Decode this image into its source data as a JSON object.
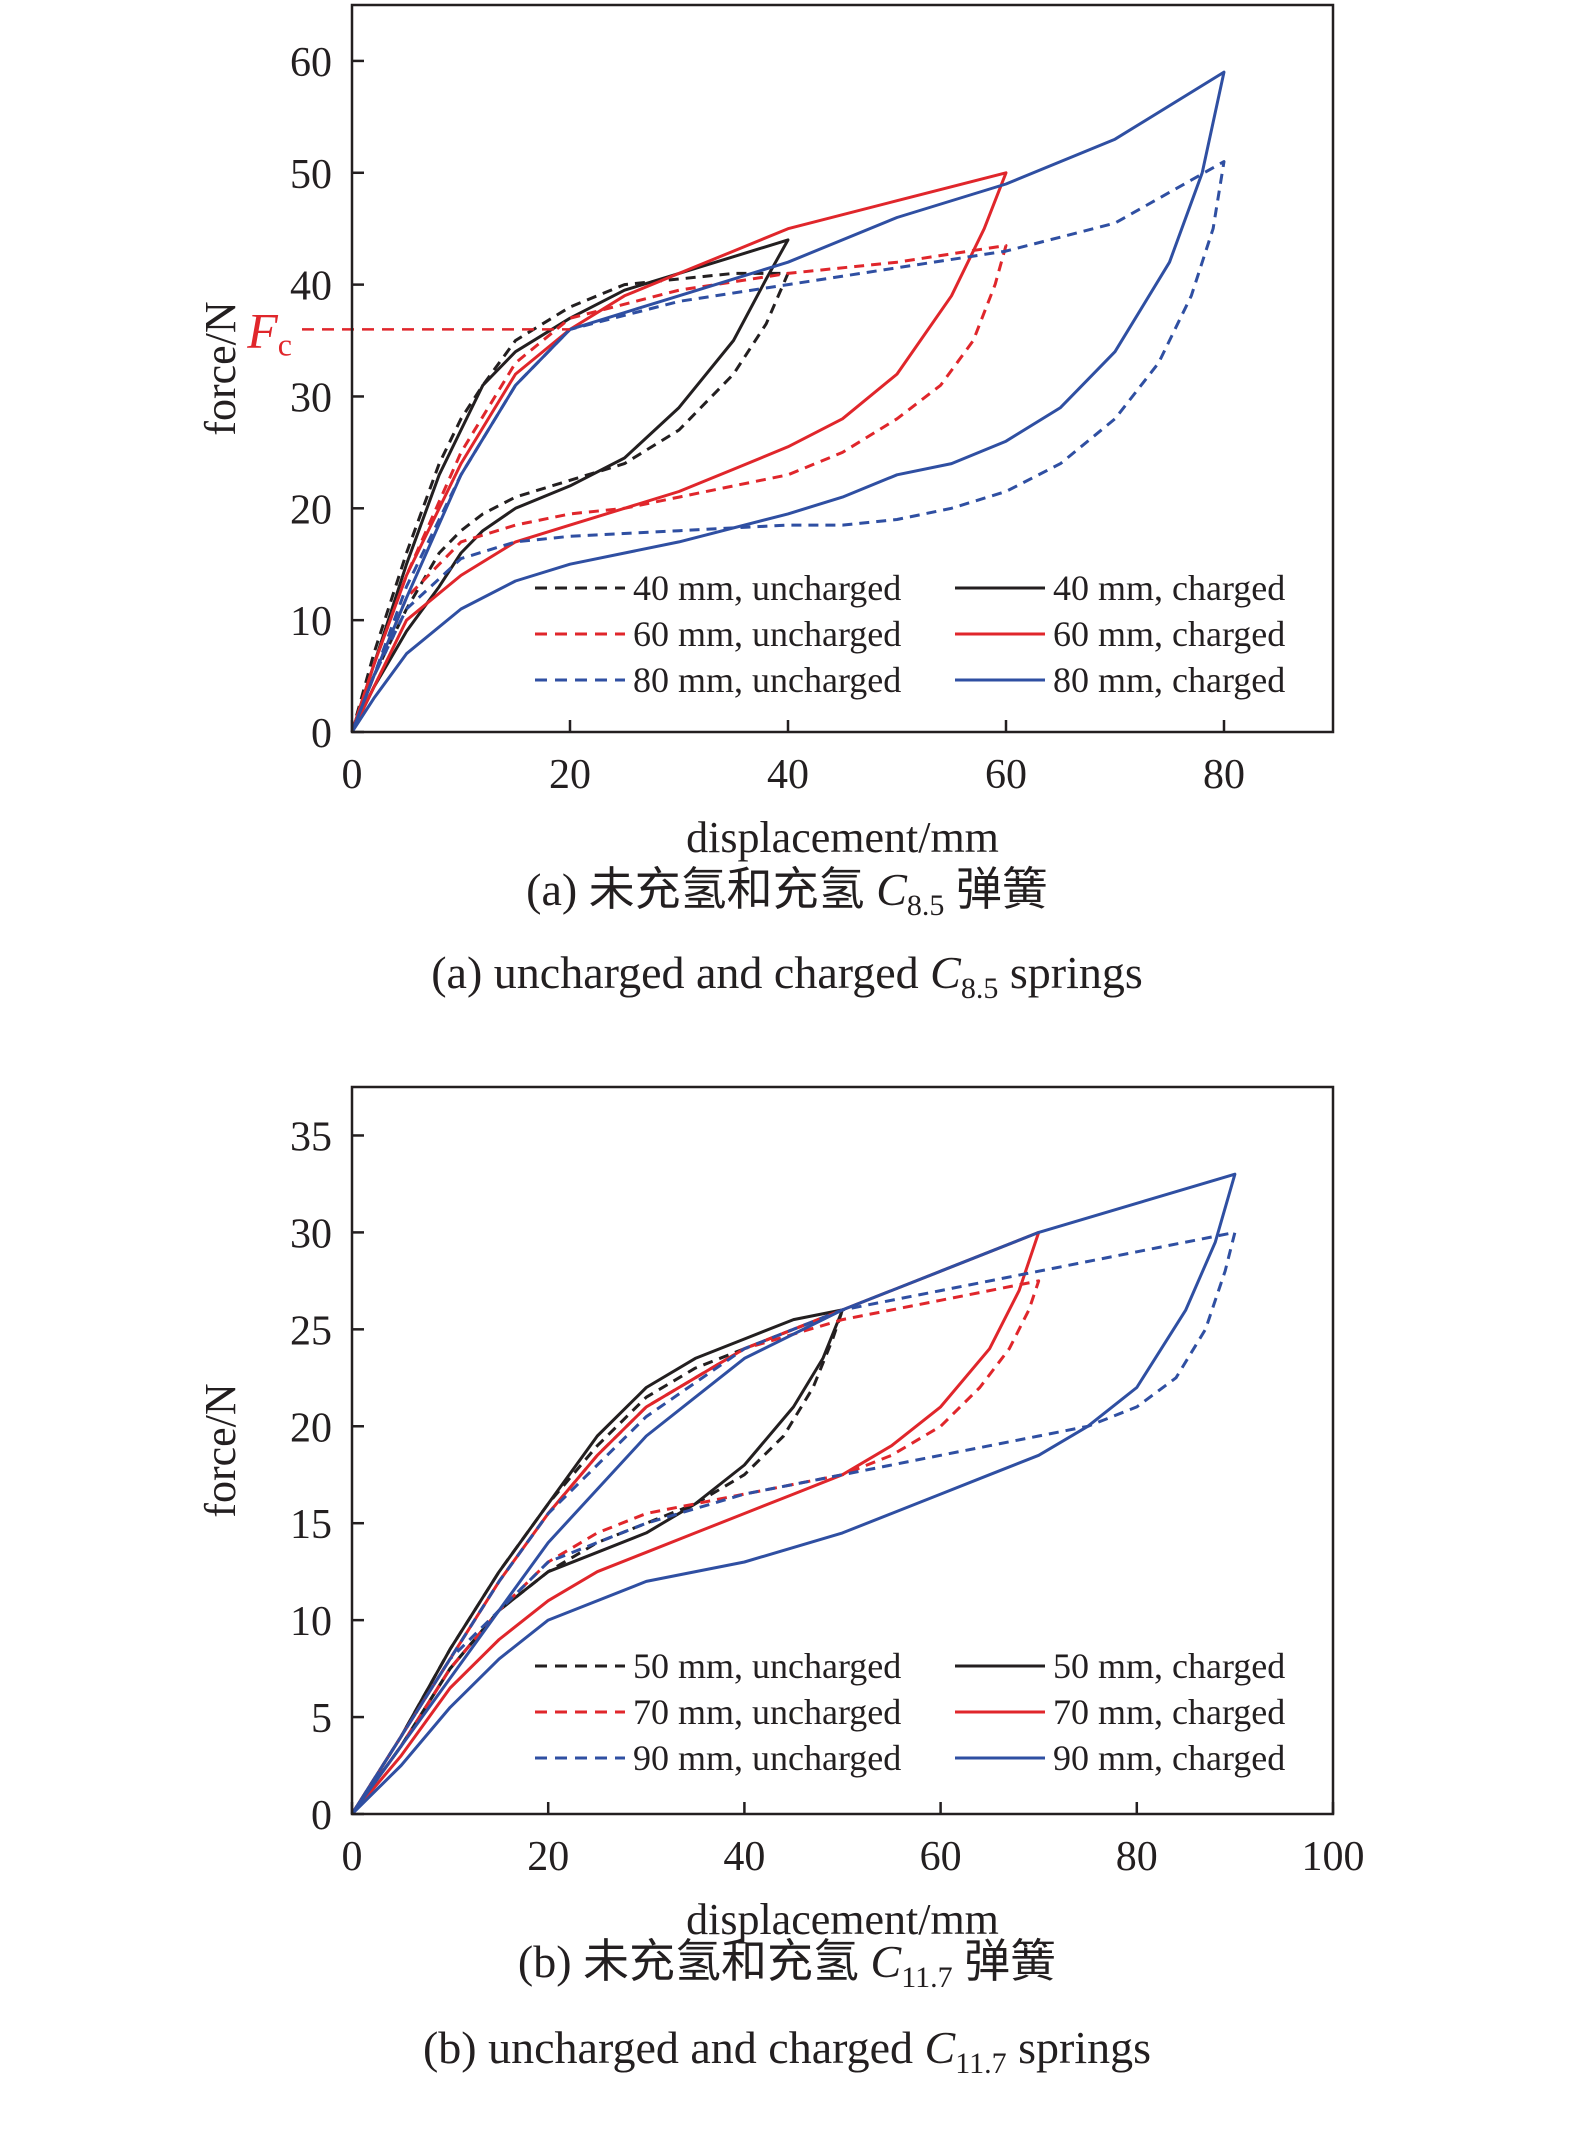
{
  "colors": {
    "uncharged_short": "#231f20",
    "mid": "#e0262b",
    "long": "#2f4fa2",
    "axis": "#231f20",
    "fc": "#e0262b"
  },
  "chart_data": [
    {
      "type": "line",
      "xlabel": "displacement/mm",
      "ylabel": "force/N",
      "xlim": [
        0,
        90
      ],
      "ylim": [
        0,
        65
      ],
      "xticks": [
        0,
        20,
        40,
        60,
        80
      ],
      "yticks": [
        0,
        10,
        20,
        30,
        40,
        50,
        60
      ],
      "annotation": {
        "label": "F",
        "sub": "c",
        "y": 36
      },
      "caption_cn": {
        "pre": "(a) 未充氢和充氢 ",
        "sym": "C",
        "sub": "8.5",
        "post": " 弹簧"
      },
      "caption_en": {
        "pre": "(a) uncharged and charged ",
        "sym": "C",
        "sub": "8.5",
        "post": " springs"
      },
      "legend_placement": "bottom-right",
      "series": [
        {
          "name": "40 mm, uncharged",
          "style": "dashed",
          "color": "#231f20",
          "x": [
            0,
            2,
            5,
            8,
            10,
            12,
            15,
            20,
            25,
            30,
            35,
            40,
            38,
            35,
            30,
            25,
            20,
            15,
            12,
            10,
            8,
            5,
            2,
            0
          ],
          "y": [
            0,
            7,
            16,
            24,
            28,
            31,
            35,
            38,
            40,
            40.5,
            41,
            41,
            36.5,
            32,
            27,
            24,
            22.5,
            21,
            19.5,
            18,
            16,
            11,
            5,
            0
          ]
        },
        {
          "name": "40 mm, charged",
          "style": "solid",
          "color": "#231f20",
          "x": [
            0,
            2,
            5,
            8,
            10,
            12,
            15,
            20,
            25,
            30,
            35,
            40,
            38,
            35,
            30,
            25,
            20,
            15,
            12,
            10,
            8,
            5,
            2,
            0
          ],
          "y": [
            0,
            6,
            15,
            23,
            27,
            31,
            34,
            37,
            39.5,
            41,
            42.5,
            44,
            40.5,
            35,
            29,
            24.5,
            22,
            20,
            18,
            16,
            13,
            9,
            4,
            0
          ]
        },
        {
          "name": "60 mm, uncharged",
          "style": "dashed",
          "color": "#e0262b",
          "x": [
            0,
            2,
            5,
            10,
            15,
            20,
            30,
            40,
            50,
            60,
            59,
            57,
            54,
            50,
            45,
            40,
            35,
            30,
            25,
            20,
            15,
            10,
            5,
            2,
            0
          ],
          "y": [
            0,
            6,
            14,
            25,
            33,
            37,
            39.5,
            41,
            42,
            43.5,
            40,
            35,
            31,
            28,
            25,
            23,
            22,
            21,
            20,
            19.5,
            18.5,
            17,
            12,
            5,
            0
          ]
        },
        {
          "name": "60 mm, charged",
          "style": "solid",
          "color": "#e0262b",
          "x": [
            0,
            2,
            5,
            10,
            15,
            20,
            25,
            30,
            35,
            40,
            50,
            60,
            58,
            55,
            50,
            45,
            40,
            35,
            30,
            25,
            20,
            15,
            10,
            5,
            2,
            0
          ],
          "y": [
            0,
            6,
            14,
            24,
            32,
            36,
            39,
            41,
            43,
            45,
            47.5,
            50,
            45,
            39,
            32,
            28,
            25.5,
            23.5,
            21.5,
            20,
            18.5,
            17,
            14,
            10,
            4,
            0
          ]
        },
        {
          "name": "80 mm, uncharged",
          "style": "dashed",
          "color": "#2f4fa2",
          "x": [
            0,
            2,
            5,
            10,
            15,
            20,
            30,
            40,
            50,
            60,
            70,
            80,
            79,
            77,
            74,
            70,
            65,
            60,
            55,
            50,
            45,
            40,
            30,
            20,
            15,
            10,
            5,
            2,
            0
          ],
          "y": [
            0,
            5,
            13,
            23,
            31,
            36,
            38.5,
            40,
            41.5,
            43,
            45.5,
            51,
            45,
            39,
            33,
            28,
            24,
            21.5,
            20,
            19,
            18.5,
            18.5,
            18,
            17.5,
            17,
            15.5,
            11,
            5,
            0
          ]
        },
        {
          "name": "80 mm, charged",
          "style": "solid",
          "color": "#2f4fa2",
          "x": [
            0,
            2,
            5,
            10,
            15,
            20,
            30,
            40,
            50,
            60,
            70,
            80,
            78,
            75,
            70,
            65,
            60,
            55,
            50,
            45,
            40,
            30,
            20,
            15,
            10,
            5,
            2,
            0
          ],
          "y": [
            0,
            5,
            12,
            23,
            31,
            36,
            39,
            42,
            46,
            49,
            53,
            59,
            50,
            42,
            34,
            29,
            26,
            24,
            23,
            21,
            19.5,
            17,
            15,
            13.5,
            11,
            7,
            3,
            0
          ]
        }
      ]
    },
    {
      "type": "line",
      "xlabel": "displacement/mm",
      "ylabel": "force/N",
      "xlim": [
        0,
        100
      ],
      "ylim": [
        0,
        37.5
      ],
      "xticks": [
        0,
        20,
        40,
        60,
        80,
        100
      ],
      "yticks": [
        0,
        5,
        10,
        15,
        20,
        25,
        30,
        35
      ],
      "caption_cn": {
        "pre": "(b) 未充氢和充氢 ",
        "sym": "C",
        "sub": "11.7",
        "post": " 弹簧"
      },
      "caption_en": {
        "pre": "(b) uncharged and charged ",
        "sym": "C",
        "sub": "11.7",
        "post": " springs"
      },
      "legend_placement": "bottom-right",
      "series": [
        {
          "name": "50 mm, uncharged",
          "style": "dashed",
          "color": "#231f20",
          "x": [
            0,
            5,
            10,
            15,
            20,
            25,
            30,
            35,
            40,
            45,
            50,
            49,
            47,
            44,
            40,
            35,
            30,
            25,
            20,
            15,
            10,
            5,
            0
          ],
          "y": [
            0,
            4,
            8.5,
            12.5,
            16,
            19,
            21.5,
            23,
            24,
            25,
            26,
            24.5,
            22,
            19.5,
            17.5,
            16,
            15,
            14,
            12.5,
            10.5,
            7.5,
            3.5,
            0
          ]
        },
        {
          "name": "50 mm, charged",
          "style": "solid",
          "color": "#231f20",
          "x": [
            0,
            5,
            10,
            15,
            20,
            25,
            30,
            35,
            40,
            45,
            50,
            48,
            45,
            40,
            35,
            30,
            25,
            20,
            15,
            10,
            5,
            0
          ],
          "y": [
            0,
            4,
            8.5,
            12.5,
            16,
            19.5,
            22,
            23.5,
            24.5,
            25.5,
            26,
            23.5,
            21,
            18,
            16,
            14.5,
            13.5,
            12.5,
            10.5,
            7.5,
            3.5,
            0
          ]
        },
        {
          "name": "70 mm, uncharged",
          "style": "dashed",
          "color": "#e0262b",
          "x": [
            0,
            5,
            10,
            15,
            20,
            25,
            30,
            40,
            50,
            60,
            70,
            69,
            67,
            64,
            60,
            55,
            50,
            45,
            40,
            35,
            30,
            25,
            20,
            15,
            10,
            5,
            0
          ],
          "y": [
            0,
            4,
            8,
            12,
            15.5,
            18.5,
            21,
            24,
            25.5,
            26.5,
            27.5,
            26,
            24,
            22,
            20,
            18.5,
            17.5,
            17,
            16.5,
            16,
            15.5,
            14.5,
            13,
            10.5,
            7.5,
            3.5,
            0
          ]
        },
        {
          "name": "70 mm, charged",
          "style": "solid",
          "color": "#e0262b",
          "x": [
            0,
            5,
            10,
            15,
            20,
            25,
            30,
            40,
            50,
            60,
            70,
            68,
            65,
            60,
            55,
            50,
            45,
            40,
            35,
            30,
            25,
            20,
            15,
            10,
            5,
            0
          ],
          "y": [
            0,
            4,
            8,
            12,
            15.5,
            18.5,
            21,
            24,
            26,
            28,
            30,
            27,
            24,
            21,
            19,
            17.5,
            16.5,
            15.5,
            14.5,
            13.5,
            12.5,
            11,
            9,
            6.5,
            3,
            0
          ]
        },
        {
          "name": "90 mm, uncharged",
          "style": "dashed",
          "color": "#2f4fa2",
          "x": [
            0,
            5,
            10,
            15,
            20,
            30,
            40,
            50,
            60,
            70,
            80,
            90,
            89,
            87,
            84,
            80,
            75,
            70,
            65,
            60,
            50,
            40,
            30,
            20,
            10,
            5,
            0
          ],
          "y": [
            0,
            4,
            8,
            12,
            15.5,
            20.5,
            24,
            26,
            27,
            28,
            29,
            30,
            28,
            25,
            22.5,
            21,
            20,
            19.5,
            19,
            18.5,
            17.5,
            16.5,
            15,
            13,
            8,
            4,
            0
          ]
        },
        {
          "name": "90 mm, charged",
          "style": "solid",
          "color": "#2f4fa2",
          "x": [
            0,
            5,
            10,
            15,
            20,
            30,
            40,
            50,
            60,
            70,
            80,
            90,
            88,
            85,
            80,
            75,
            70,
            65,
            60,
            55,
            50,
            40,
            30,
            20,
            15,
            10,
            5,
            0
          ],
          "y": [
            0,
            3.5,
            7,
            10.5,
            14,
            19.5,
            23.5,
            26,
            28,
            30,
            31.5,
            33,
            29.5,
            26,
            22,
            20,
            18.5,
            17.5,
            16.5,
            15.5,
            14.5,
            13,
            12,
            10,
            8,
            5.5,
            2.5,
            0
          ]
        }
      ]
    }
  ]
}
